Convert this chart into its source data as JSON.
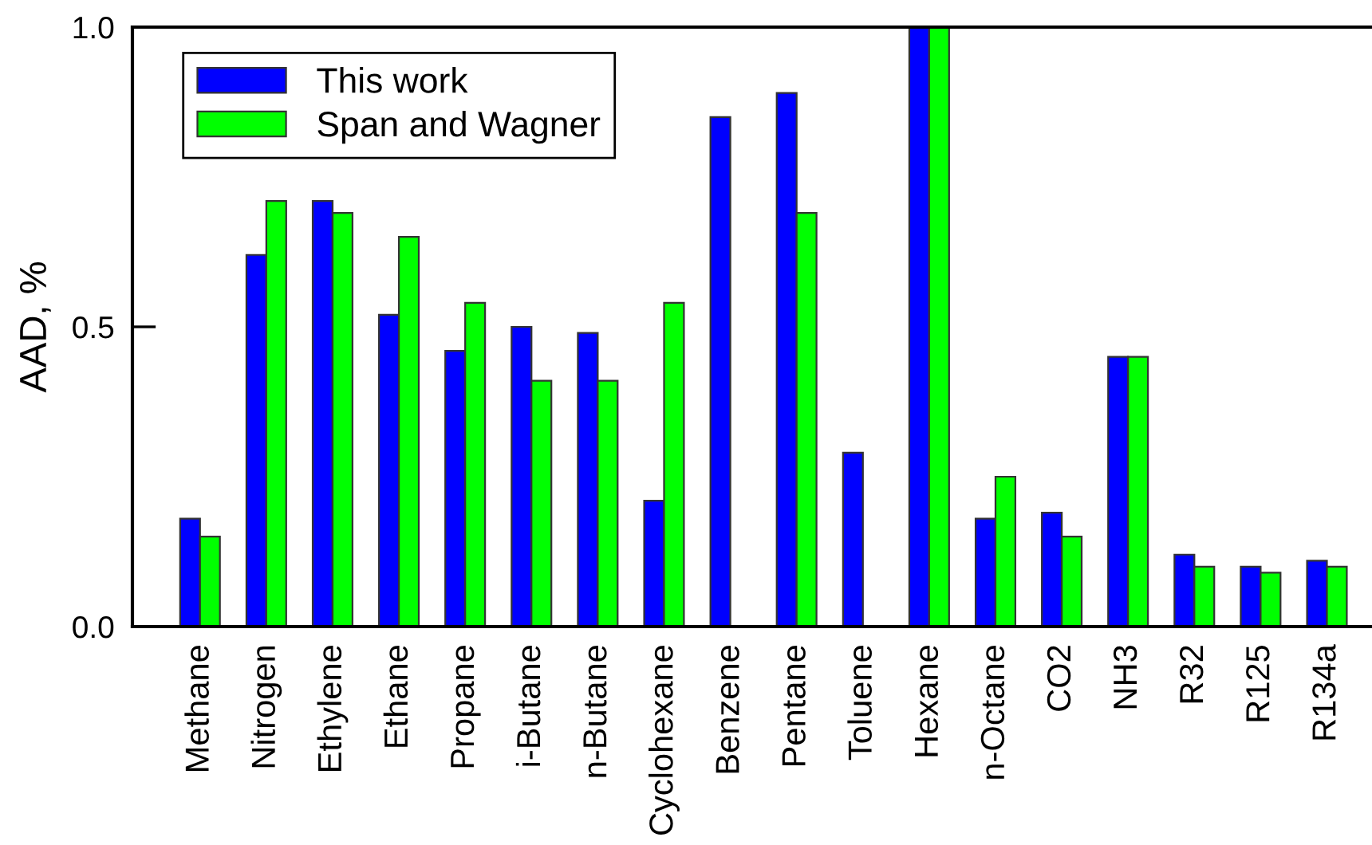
{
  "chart_data": {
    "type": "bar",
    "ylabel": "AAD, %",
    "categories": [
      "Methane",
      "Nitrogen",
      "Ethylene",
      "Ethane",
      "Propane",
      "i-Butane",
      "n-Butane",
      "Cyclohexane",
      "Benzene",
      "Pentane",
      "Toluene",
      "Hexane",
      "n-Octane",
      "CO2",
      "NH3",
      "R32",
      "R125",
      "R134a"
    ],
    "series": [
      {
        "name": "This work",
        "color": "#0000ff",
        "values": [
          0.18,
          0.62,
          0.71,
          0.52,
          0.46,
          0.5,
          0.49,
          0.21,
          0.85,
          0.89,
          0.29,
          1.0,
          0.18,
          0.19,
          0.45,
          0.12,
          0.1,
          0.11
        ]
      },
      {
        "name": "Span and Wagner",
        "color": "#00ff00",
        "values": [
          0.15,
          0.71,
          0.69,
          0.65,
          0.54,
          0.41,
          0.41,
          0.54,
          null,
          0.69,
          null,
          1.0,
          0.25,
          0.15,
          0.45,
          0.1,
          0.09,
          0.1
        ]
      }
    ],
    "ylim": [
      0,
      1
    ],
    "yticks": [
      {
        "value": 0,
        "label": "0.0"
      },
      {
        "value": 0.5,
        "label": "0.5"
      },
      {
        "value": 1,
        "label": "1.0"
      }
    ],
    "legend": "top left",
    "grid": false
  }
}
